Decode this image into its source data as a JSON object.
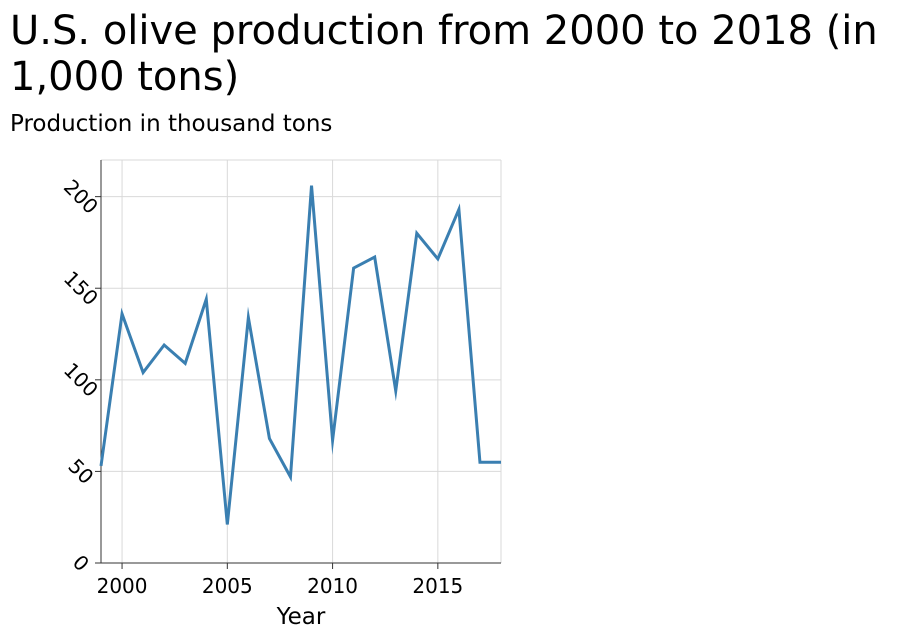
{
  "chart_data": {
    "type": "line",
    "title": "U.S. olive production from 2000 to 2018 (in 1,000 tons)",
    "ylabel": "Production in thousand tons",
    "xlabel": "Year",
    "xlim": [
      1999,
      2018
    ],
    "ylim": [
      0,
      220
    ],
    "x_ticks": [
      2000,
      2005,
      2010,
      2015
    ],
    "y_ticks": [
      0,
      50,
      100,
      150,
      200
    ],
    "x_tick_labels": [
      "2000",
      "2005",
      "2010",
      "2015"
    ],
    "y_tick_labels": [
      "0",
      "50",
      "100",
      "150",
      "200"
    ],
    "grid": true,
    "line_color": "#3a7fb1",
    "series": [
      {
        "x": [
          1999,
          2000,
          2001,
          2002,
          2003,
          2004,
          2005,
          2006,
          2007,
          2008,
          2009,
          2010,
          2011,
          2012,
          2013,
          2014,
          2015,
          2016,
          2017,
          2018
        ],
        "values": [
          53,
          136,
          104,
          119,
          109,
          144,
          21,
          134,
          68,
          47,
          206,
          67,
          161,
          167,
          94,
          180,
          166,
          193,
          55,
          55
        ]
      }
    ]
  }
}
